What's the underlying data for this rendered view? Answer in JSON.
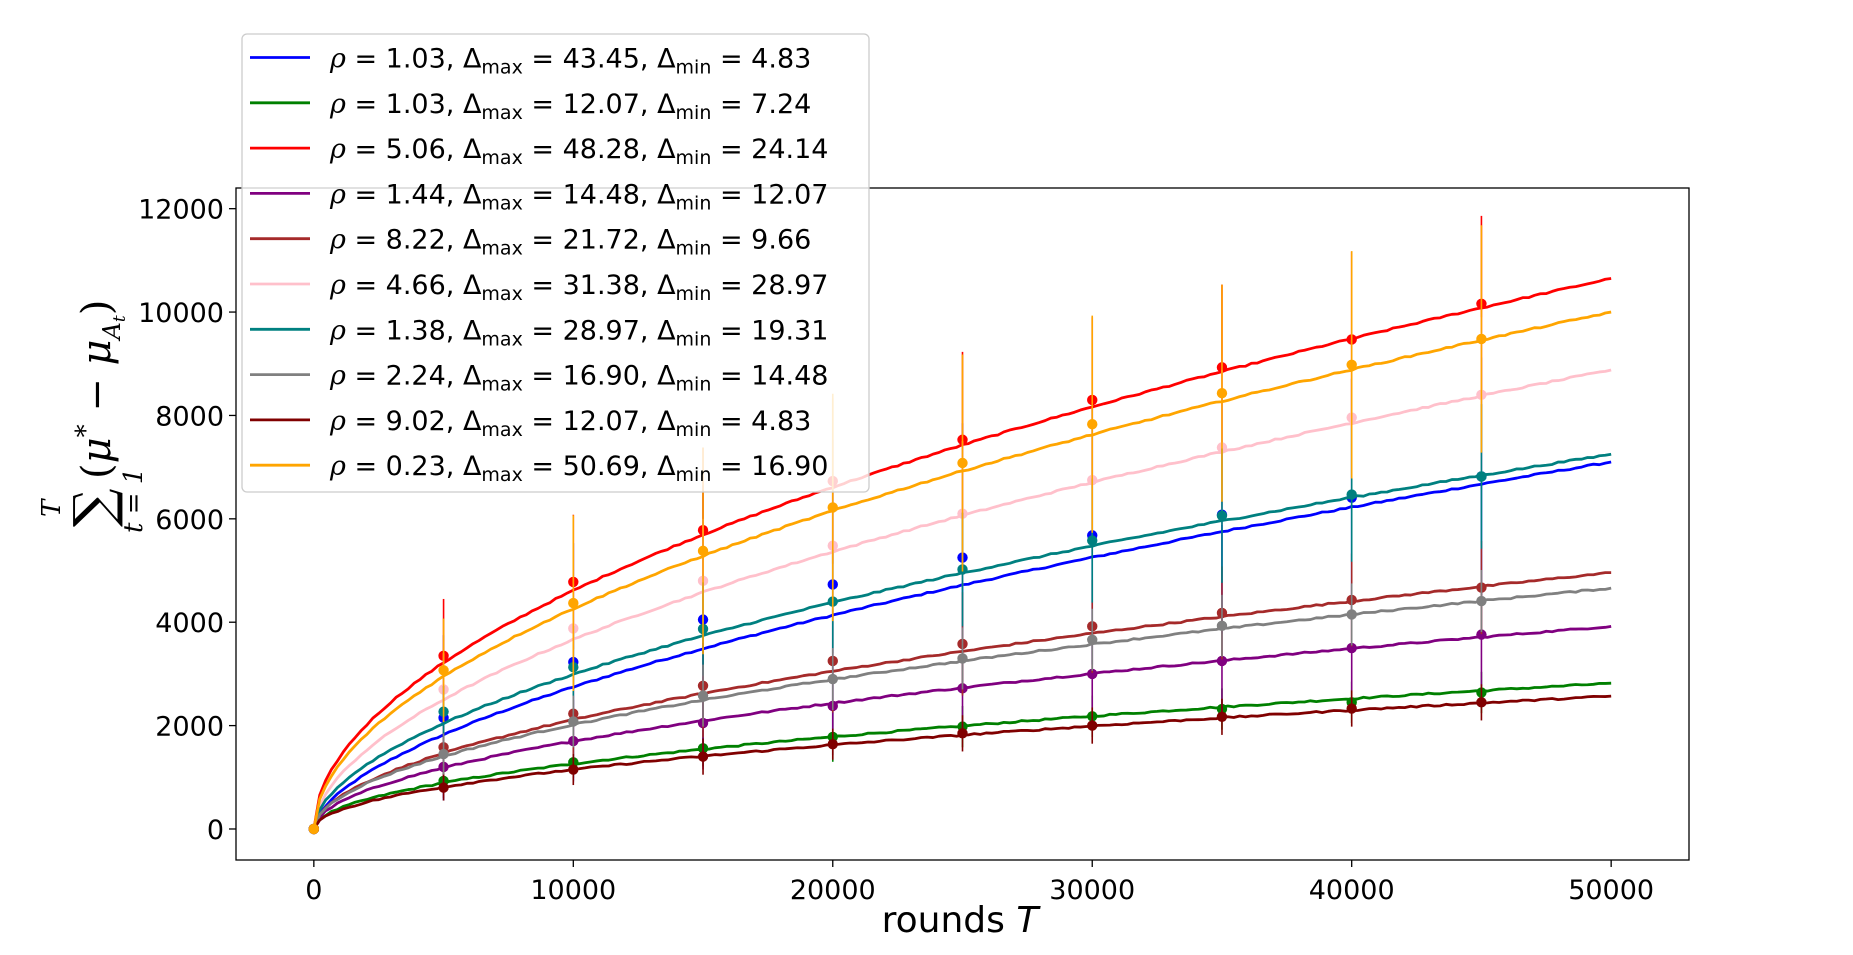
{
  "chart_data": {
    "type": "line",
    "title": "",
    "xlabel": "rounds T",
    "ylabel": "∑_{t=1}^{T} (μ* − μ_{A_t})",
    "xlim": [
      -3000,
      53000
    ],
    "ylim": [
      -600,
      12400
    ],
    "xticks": [
      0,
      10000,
      20000,
      30000,
      40000,
      50000
    ],
    "yticks": [
      0,
      2000,
      4000,
      6000,
      8000,
      10000,
      12000
    ],
    "grid": false,
    "legend_placement": "upper-left",
    "marker_x": [
      0,
      5000,
      10000,
      15000,
      20000,
      25000,
      30000,
      35000,
      40000,
      45000,
      50000
    ],
    "series": [
      {
        "name": "ρ = 1.03, Δmax = 43.45, Δmin = 4.83",
        "rho": "1.03",
        "dmax": "43.45",
        "dmin": "4.83",
        "color": "#0000ff",
        "end": 7100,
        "alpha": 0.59,
        "markers": [
          0,
          2150,
          3230,
          4050,
          4730,
          5250,
          5680,
          6080,
          6410,
          6820
        ],
        "err": [
          0,
          1600,
          2300,
          2600,
          2800,
          2600,
          2500,
          2300,
          2300,
          2300
        ]
      },
      {
        "name": "ρ = 1.03, Δmax = 12.07, Δmin = 7.24",
        "rho": "1.03",
        "dmax": "12.07",
        "dmin": "7.24",
        "color": "#008000",
        "end": 2820,
        "alpha": 0.5,
        "markers": [
          0,
          930,
          1290,
          1560,
          1780,
          1980,
          2180,
          2320,
          2450,
          2640
        ],
        "err": [
          0,
          200,
          300,
          350,
          480,
          400,
          400,
          400,
          400,
          400
        ]
      },
      {
        "name": "ρ = 5.06, Δmax = 48.28, Δmin = 24.14",
        "rho": "5.06",
        "dmax": "48.28",
        "dmin": "24.14",
        "color": "#ff0000",
        "end": 10650,
        "alpha": 0.52,
        "markers": [
          0,
          3350,
          4780,
          5780,
          6730,
          7530,
          8300,
          8930,
          9470,
          10160
        ],
        "err": [
          0,
          1100,
          1300,
          1600,
          1600,
          1700,
          1600,
          1600,
          1700,
          1700
        ]
      },
      {
        "name": "ρ = 1.44, Δmax = 14.48, Δmin = 12.07",
        "rho": "1.44",
        "dmax": "14.48",
        "dmin": "12.07",
        "color": "#800080",
        "end": 3920,
        "alpha": 0.52,
        "markers": [
          0,
          1200,
          1700,
          2050,
          2380,
          2720,
          3000,
          3250,
          3500,
          3760
        ],
        "err": [
          0,
          600,
          800,
          900,
          950,
          900,
          950,
          1000,
          1000,
          1000
        ]
      },
      {
        "name": "ρ = 8.22, Δmax = 21.72, Δmin = 9.66",
        "rho": "8.22",
        "dmax": "21.72",
        "dmin": "9.66",
        "color": "#a52a2a",
        "end": 4960,
        "alpha": 0.53,
        "markers": [
          0,
          1580,
          2230,
          2770,
          3250,
          3580,
          3920,
          4180,
          4430,
          4670
        ],
        "err": [
          0,
          700,
          900,
          1000,
          1000,
          1000,
          900,
          900,
          900,
          900
        ]
      },
      {
        "name": "ρ = 4.66, Δmax = 31.38, Δmin = 28.97",
        "rho": "4.66",
        "dmax": "31.38",
        "dmin": "28.97",
        "color": "#ffc0cb",
        "end": 8880,
        "alpha": 0.55,
        "markers": [
          0,
          2700,
          3880,
          4800,
          5480,
          6100,
          6750,
          7380,
          7960,
          8400
        ],
        "err": [
          0,
          700,
          1000,
          1200,
          1300,
          1400,
          1400,
          1500,
          1500,
          1500
        ]
      },
      {
        "name": "ρ = 1.38, Δmax = 28.97, Δmin = 19.31",
        "rho": "1.38",
        "dmax": "28.97",
        "dmin": "19.31",
        "color": "#008080",
        "end": 7250,
        "alpha": 0.55,
        "markers": [
          0,
          2270,
          3130,
          3870,
          4400,
          5020,
          5580,
          6060,
          6470,
          6820
        ],
        "err": [
          0,
          500,
          800,
          900,
          1000,
          1100,
          1200,
          1300,
          1300,
          1400
        ]
      },
      {
        "name": "ρ = 2.24, Δmax = 16.90, Δmin = 14.48",
        "rho": "2.24",
        "dmax": "16.90",
        "dmin": "14.48",
        "color": "#808080",
        "end": 4660,
        "alpha": 0.52,
        "markers": [
          0,
          1450,
          2080,
          2580,
          2900,
          3300,
          3660,
          3930,
          4150,
          4410
        ],
        "err": [
          0,
          400,
          500,
          600,
          600,
          600,
          600,
          600,
          600,
          600
        ]
      },
      {
        "name": "ρ = 9.02, Δmax = 12.07, Δmin = 4.83",
        "rho": "9.02",
        "dmax": "12.07",
        "dmin": "4.83",
        "color": "#800000",
        "end": 2570,
        "alpha": 0.5,
        "markers": [
          0,
          800,
          1150,
          1400,
          1640,
          1850,
          2000,
          2170,
          2330,
          2450
        ],
        "err": [
          0,
          250,
          300,
          350,
          300,
          350,
          350,
          350,
          350,
          350
        ]
      },
      {
        "name": "ρ = 0.23, Δmax = 50.69, Δmin = 16.90",
        "rho": "0.23",
        "dmax": "50.69",
        "dmin": "16.90",
        "color": "#ffa500",
        "end": 10000,
        "alpha": 0.53,
        "markers": [
          0,
          3070,
          4370,
          5380,
          6220,
          7080,
          7830,
          8430,
          8980,
          9480
        ],
        "err": [
          0,
          1000,
          1700,
          2000,
          2200,
          2100,
          2100,
          2100,
          2200,
          2200
        ]
      }
    ]
  }
}
